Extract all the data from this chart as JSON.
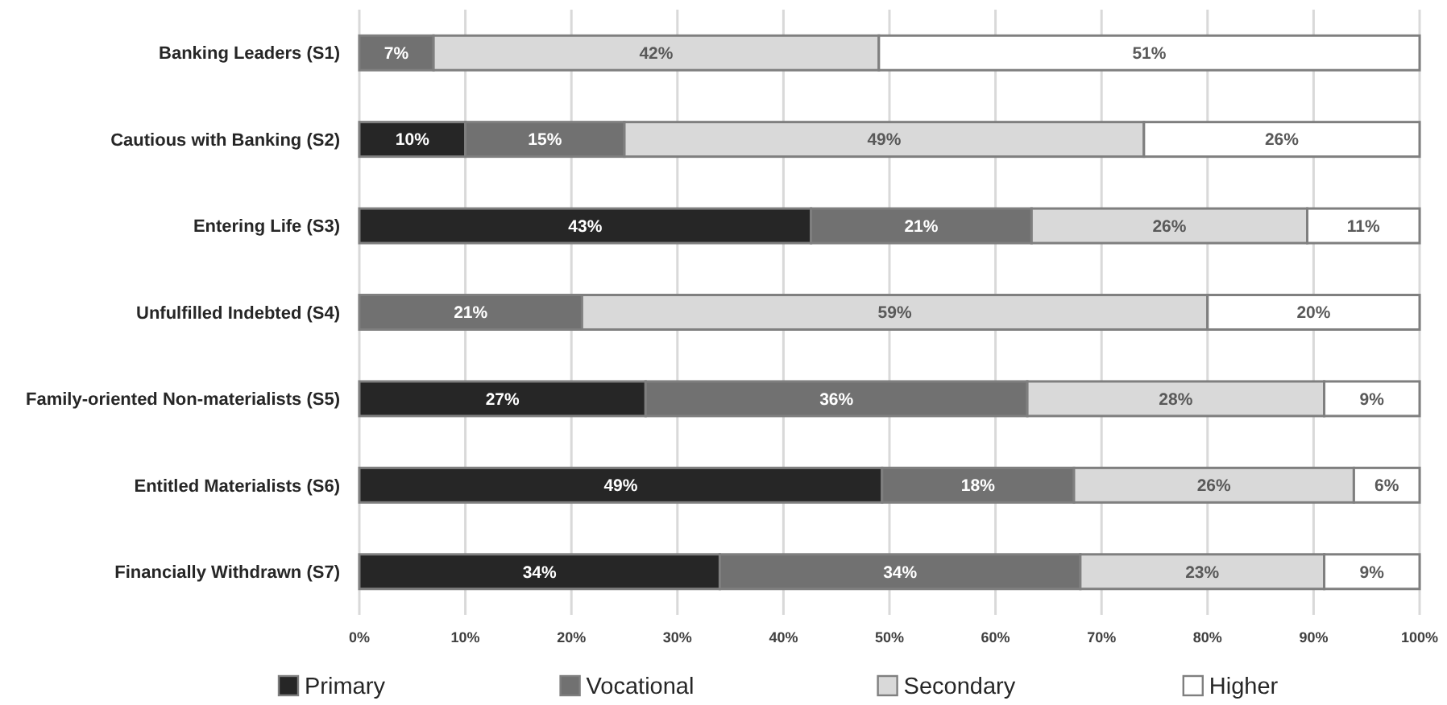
{
  "chart_data": {
    "type": "bar",
    "orientation": "horizontal",
    "stacked": true,
    "categories": [
      "Banking Leaders (S1)",
      "Cautious with Banking (S2)",
      "Entering Life (S3)",
      "Unfulfilled Indebted (S4)",
      "Family-oriented Non-materialists (S5)",
      "Entitled Materialists (S6)",
      "Financially Withdrawn (S7)"
    ],
    "series": [
      {
        "name": "Primary",
        "color": "#262626",
        "values": [
          null,
          10,
          42.6,
          null,
          27,
          49.3,
          34
        ],
        "value_labels": [
          null,
          "10%",
          "43%",
          null,
          "27%",
          "49%",
          "34%"
        ]
      },
      {
        "name": "Vocational",
        "color": "#717171",
        "values": [
          7,
          15,
          20.8,
          21,
          36,
          18.1,
          34
        ],
        "value_labels": [
          "7%",
          "15%",
          "21%",
          "21%",
          "36%",
          "18%",
          "34%"
        ]
      },
      {
        "name": "Secondary",
        "color": "#d9d9d9",
        "values": [
          42,
          49,
          26,
          59,
          28,
          26.4,
          23
        ],
        "value_labels": [
          "42%",
          "49%",
          "26%",
          "59%",
          "28%",
          "26%",
          "23%"
        ]
      },
      {
        "name": "Higher",
        "color": "#ffffff",
        "values": [
          51,
          26,
          10.6,
          20,
          9,
          6.2,
          9
        ],
        "value_labels": [
          "51%",
          "26%",
          "11%",
          "20%",
          "9%",
          "6%",
          "9%"
        ]
      }
    ],
    "xlim": [
      0,
      100
    ],
    "xticks": [
      {
        "value": 0,
        "label": "0%"
      },
      {
        "value": 10,
        "label": "10%"
      },
      {
        "value": 20,
        "label": "20%"
      },
      {
        "value": 30,
        "label": "30%"
      },
      {
        "value": 40,
        "label": "40%"
      },
      {
        "value": 50,
        "label": "50%"
      },
      {
        "value": 60,
        "label": "60%"
      },
      {
        "value": 70,
        "label": "70%"
      },
      {
        "value": 80,
        "label": "80%"
      },
      {
        "value": 90,
        "label": "90%"
      },
      {
        "value": 100,
        "label": "100%"
      }
    ],
    "grid": "x",
    "legend": "bottom"
  }
}
